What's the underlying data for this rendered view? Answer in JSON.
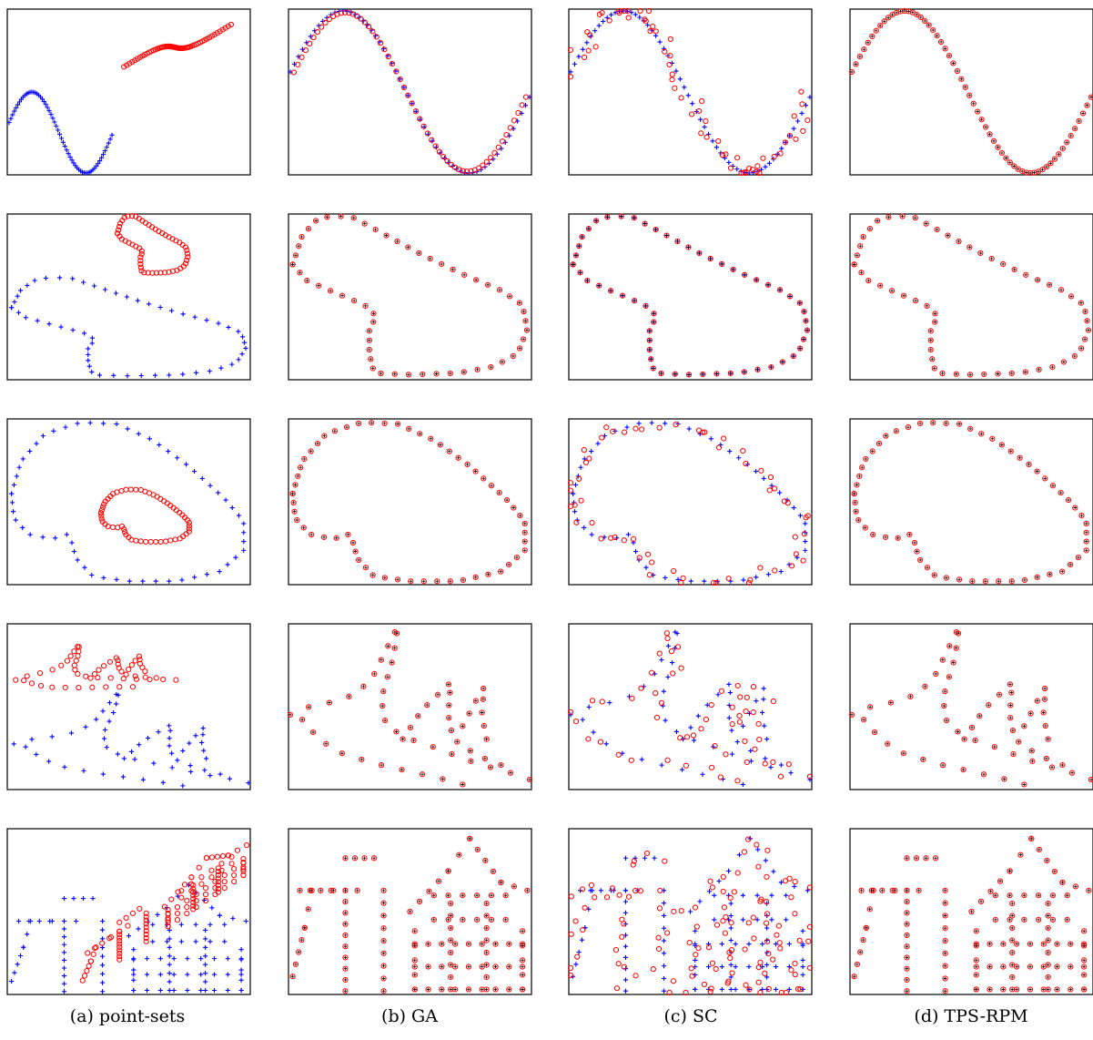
{
  "columns": [
    {
      "id": "a",
      "caption": "(a) point-sets"
    },
    {
      "id": "b",
      "caption": "(b) GA"
    },
    {
      "id": "c",
      "caption": "(c) SC"
    },
    {
      "id": "d",
      "caption": "(d) TPS-RPM"
    }
  ],
  "colors": {
    "target": "#0000ff",
    "source": "#ff0000"
  },
  "chart_data": {
    "type": "scatter",
    "description_markers": {
      "target": "plus",
      "source": "circle"
    },
    "rows": [
      {
        "shape": "sine"
      },
      {
        "shape": "fish-bird"
      },
      {
        "shape": "loop"
      },
      {
        "shape": "star-fish"
      },
      {
        "shape": "chinese-character"
      }
    ]
  }
}
